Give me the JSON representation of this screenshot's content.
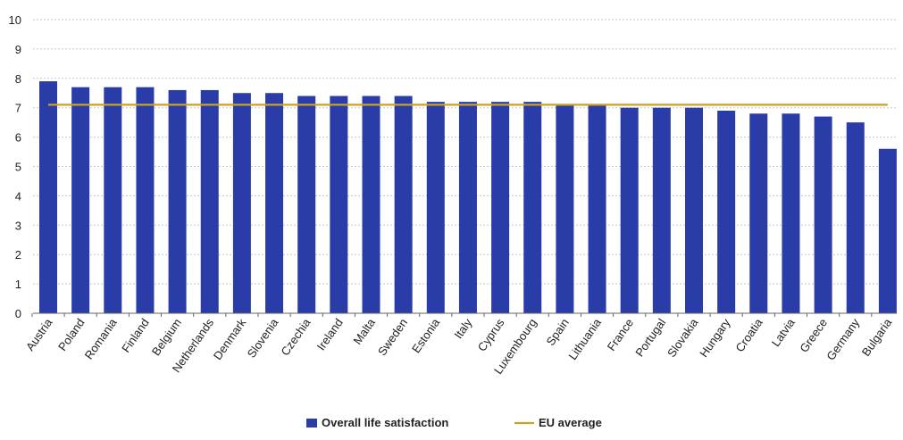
{
  "chart_data": {
    "type": "bar",
    "title": "",
    "xlabel": "",
    "ylabel": "",
    "ylim": [
      0,
      10
    ],
    "yticks": [
      "0",
      "1",
      "2",
      "3",
      "4",
      "5",
      "6",
      "7",
      "8",
      "9",
      "10"
    ],
    "grid": true,
    "legend_position": "bottom-center",
    "categories": [
      "Austria",
      "Poland",
      "Romania",
      "Finland",
      "Belgium",
      "Netherlands",
      "Denmark",
      "Slovenia",
      "Czechia",
      "Ireland",
      "Malta",
      "Sweden",
      "Estonia",
      "Italy",
      "Cyprus",
      "Luxembourg",
      "Spain",
      "Lithuania",
      "France",
      "Portugal",
      "Slovakia",
      "Hungary",
      "Croatia",
      "Latvia",
      "Greece",
      "Germany",
      "Bulgaria"
    ],
    "series": [
      {
        "name": "Overall life satisfaction",
        "type": "bar",
        "color": "#2a3ca8",
        "values": [
          7.9,
          7.7,
          7.7,
          7.7,
          7.6,
          7.6,
          7.5,
          7.5,
          7.4,
          7.4,
          7.4,
          7.4,
          7.2,
          7.2,
          7.2,
          7.2,
          7.1,
          7.1,
          7.0,
          7.0,
          7.0,
          6.9,
          6.8,
          6.8,
          6.7,
          6.5,
          5.6
        ]
      },
      {
        "name": "EU average",
        "type": "line",
        "color": "#c9a227",
        "value": 7.1
      }
    ]
  }
}
